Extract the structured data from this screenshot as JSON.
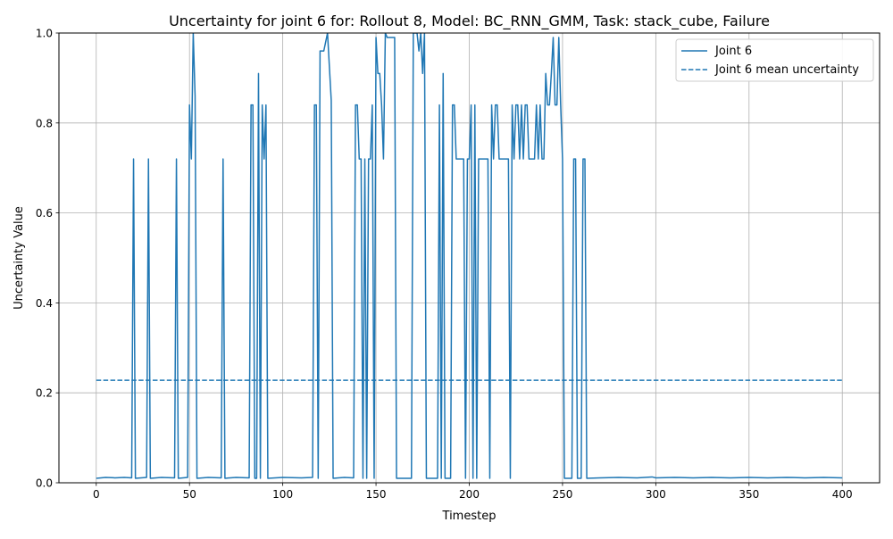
{
  "chart_data": {
    "type": "line",
    "title": "Uncertainty for joint 6 for: Rollout 8, Model: BC_RNN_GMM, Task: stack_cube, Failure",
    "xlabel": "Timestep",
    "ylabel": "Uncertainty Value",
    "xlim": [
      -20,
      420
    ],
    "ylim": [
      0,
      1.0
    ],
    "xticks": [
      0,
      50,
      100,
      150,
      200,
      250,
      300,
      350,
      400
    ],
    "yticks": [
      0.0,
      0.2,
      0.4,
      0.6,
      0.8,
      1.0
    ],
    "xtick_labels": [
      "0",
      "50",
      "100",
      "150",
      "200",
      "250",
      "300",
      "350",
      "400"
    ],
    "ytick_labels": [
      "0.0",
      "0.2",
      "0.4",
      "0.6",
      "0.8",
      "1.0"
    ],
    "grid": true,
    "legend_position": "top-right",
    "series": [
      {
        "name": "Joint 6",
        "style": "solid",
        "color": "#1f77b4",
        "points": [
          [
            0,
            0.01
          ],
          [
            5,
            0.012
          ],
          [
            10,
            0.011
          ],
          [
            15,
            0.012
          ],
          [
            19,
            0.011
          ],
          [
            20,
            0.72
          ],
          [
            21,
            0.01
          ],
          [
            27,
            0.012
          ],
          [
            28,
            0.72
          ],
          [
            29,
            0.01
          ],
          [
            35,
            0.012
          ],
          [
            42,
            0.011
          ],
          [
            43,
            0.72
          ],
          [
            44,
            0.01
          ],
          [
            49,
            0.012
          ],
          [
            50,
            0.84
          ],
          [
            51,
            0.72
          ],
          [
            52,
            1.0
          ],
          [
            53,
            0.86
          ],
          [
            54,
            0.01
          ],
          [
            60,
            0.012
          ],
          [
            67,
            0.011
          ],
          [
            68,
            0.72
          ],
          [
            69,
            0.01
          ],
          [
            75,
            0.012
          ],
          [
            82,
            0.011
          ],
          [
            83,
            0.84
          ],
          [
            84,
            0.84
          ],
          [
            85,
            0.01
          ],
          [
            86,
            0.01
          ],
          [
            87,
            0.91
          ],
          [
            88,
            0.01
          ],
          [
            89,
            0.84
          ],
          [
            90,
            0.72
          ],
          [
            91,
            0.84
          ],
          [
            92,
            0.01
          ],
          [
            100,
            0.012
          ],
          [
            110,
            0.011
          ],
          [
            116,
            0.012
          ],
          [
            117,
            0.84
          ],
          [
            118,
            0.84
          ],
          [
            119,
            0.01
          ],
          [
            120,
            0.96
          ],
          [
            122,
            0.96
          ],
          [
            124,
            1.0
          ],
          [
            126,
            0.85
          ],
          [
            127,
            0.01
          ],
          [
            133,
            0.012
          ],
          [
            138,
            0.011
          ],
          [
            139,
            0.84
          ],
          [
            140,
            0.84
          ],
          [
            141,
            0.72
          ],
          [
            142,
            0.72
          ],
          [
            143,
            0.01
          ],
          [
            144,
            0.72
          ],
          [
            145,
            0.01
          ],
          [
            146,
            0.72
          ],
          [
            147,
            0.72
          ],
          [
            148,
            0.84
          ],
          [
            149,
            0.01
          ],
          [
            150,
            0.99
          ],
          [
            151,
            0.91
          ],
          [
            152,
            0.91
          ],
          [
            153,
            0.84
          ],
          [
            154,
            0.72
          ],
          [
            155,
            1.0
          ],
          [
            156,
            0.99
          ],
          [
            160,
            0.99
          ],
          [
            161,
            0.01
          ],
          [
            169,
            0.01
          ],
          [
            170,
            1.0
          ],
          [
            172,
            1.0
          ],
          [
            173,
            0.96
          ],
          [
            174,
            1.0
          ],
          [
            175,
            0.91
          ],
          [
            176,
            1.0
          ],
          [
            177,
            0.01
          ],
          [
            183,
            0.01
          ],
          [
            184,
            0.84
          ],
          [
            185,
            0.01
          ],
          [
            186,
            0.91
          ],
          [
            187,
            0.01
          ],
          [
            190,
            0.01
          ],
          [
            191,
            0.84
          ],
          [
            192,
            0.84
          ],
          [
            193,
            0.72
          ],
          [
            197,
            0.72
          ],
          [
            198,
            0.01
          ],
          [
            199,
            0.72
          ],
          [
            200,
            0.72
          ],
          [
            201,
            0.84
          ],
          [
            202,
            0.01
          ],
          [
            203,
            0.84
          ],
          [
            204,
            0.01
          ],
          [
            205,
            0.72
          ],
          [
            210,
            0.72
          ],
          [
            211,
            0.01
          ],
          [
            212,
            0.84
          ],
          [
            213,
            0.72
          ],
          [
            214,
            0.84
          ],
          [
            215,
            0.84
          ],
          [
            216,
            0.72
          ],
          [
            221,
            0.72
          ],
          [
            222,
            0.01
          ],
          [
            223,
            0.84
          ],
          [
            224,
            0.72
          ],
          [
            225,
            0.84
          ],
          [
            226,
            0.84
          ],
          [
            227,
            0.72
          ],
          [
            228,
            0.84
          ],
          [
            229,
            0.72
          ],
          [
            230,
            0.84
          ],
          [
            231,
            0.84
          ],
          [
            232,
            0.72
          ],
          [
            235,
            0.72
          ],
          [
            236,
            0.84
          ],
          [
            237,
            0.72
          ],
          [
            238,
            0.84
          ],
          [
            239,
            0.72
          ],
          [
            240,
            0.72
          ],
          [
            241,
            0.91
          ],
          [
            242,
            0.84
          ],
          [
            243,
            0.84
          ],
          [
            244,
            0.91
          ],
          [
            245,
            0.99
          ],
          [
            246,
            0.84
          ],
          [
            247,
            0.84
          ],
          [
            248,
            0.99
          ],
          [
            249,
            0.84
          ],
          [
            250,
            0.72
          ],
          [
            251,
            0.01
          ],
          [
            255,
            0.01
          ],
          [
            256,
            0.72
          ],
          [
            257,
            0.72
          ],
          [
            258,
            0.01
          ],
          [
            260,
            0.01
          ],
          [
            261,
            0.72
          ],
          [
            262,
            0.72
          ],
          [
            263,
            0.01
          ],
          [
            270,
            0.011
          ],
          [
            280,
            0.012
          ],
          [
            290,
            0.011
          ],
          [
            298,
            0.013
          ],
          [
            300,
            0.011
          ],
          [
            310,
            0.012
          ],
          [
            320,
            0.011
          ],
          [
            330,
            0.012
          ],
          [
            340,
            0.011
          ],
          [
            350,
            0.012
          ],
          [
            360,
            0.011
          ],
          [
            370,
            0.012
          ],
          [
            380,
            0.011
          ],
          [
            390,
            0.012
          ],
          [
            400,
            0.011
          ]
        ]
      },
      {
        "name": "Joint 6 mean uncertainty",
        "style": "dashed",
        "color": "#1f77b4",
        "points": [
          [
            0,
            0.228
          ],
          [
            400,
            0.228
          ]
        ]
      }
    ]
  }
}
